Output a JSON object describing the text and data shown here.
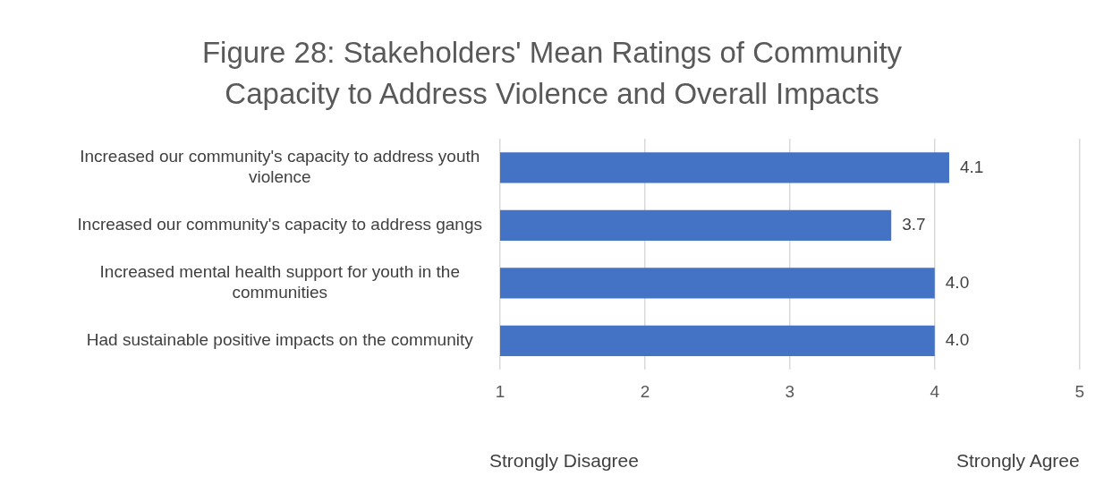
{
  "chart_data": {
    "type": "bar",
    "orientation": "horizontal",
    "title": "Figure 28: Stakeholders' Mean Ratings of Community Capacity to Address Violence and Overall Impacts",
    "categories": [
      "Increased our community's capacity to address youth violence",
      "Increased our community's capacity to address gangs",
      "Increased mental health support for youth in the communities",
      "Had sustainable positive impacts on the community"
    ],
    "values": [
      4.1,
      3.7,
      4.0,
      4.0
    ],
    "value_labels": [
      "4.1",
      "3.7",
      "4.0",
      "4.0"
    ],
    "color": "#4472c4",
    "xlim": [
      1,
      5
    ],
    "xticks": [
      1,
      2,
      3,
      4,
      5
    ],
    "grid": "x",
    "legend": false,
    "annotations": [
      "Strongly Disagree",
      "Strongly Agree"
    ]
  }
}
